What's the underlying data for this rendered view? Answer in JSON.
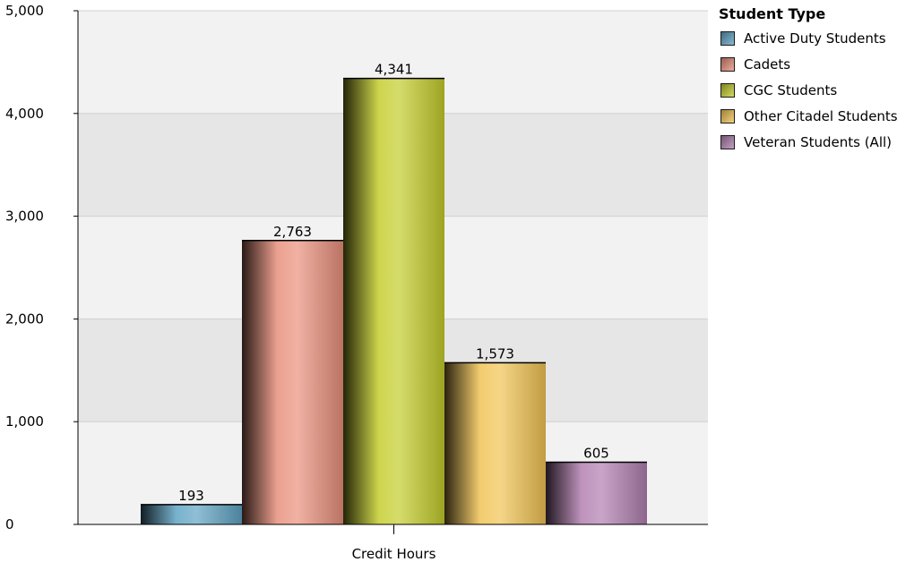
{
  "chart_data": {
    "type": "bar",
    "categories": [
      "Credit Hours"
    ],
    "xlabel": "",
    "ylabel": "",
    "ylim": [
      0,
      5000
    ],
    "yticks": [
      0,
      1000,
      2000,
      3000,
      4000,
      5000
    ],
    "ytick_labels": [
      "0",
      "1,000",
      "2,000",
      "3,000",
      "4,000",
      "5,000"
    ],
    "grid": true,
    "legend_placement": "top-right",
    "series": [
      {
        "name": "Active Duty Students",
        "values": [
          193
        ],
        "label": "193",
        "color": "#5fa3c3"
      },
      {
        "name": "Cadets",
        "values": [
          2763
        ],
        "label": "2,763",
        "color": "#e9907c"
      },
      {
        "name": "CGC Students",
        "values": [
          4341
        ],
        "label": "4,341",
        "color": "#c4cd2c"
      },
      {
        "name": "Other Citadel Students",
        "values": [
          1573
        ],
        "label": "1,573",
        "color": "#f1c354"
      },
      {
        "name": "Veteran Students (All)",
        "values": [
          605
        ],
        "label": "605",
        "color": "#b27fb0"
      }
    ]
  },
  "legend": {
    "title": "Student Type"
  }
}
